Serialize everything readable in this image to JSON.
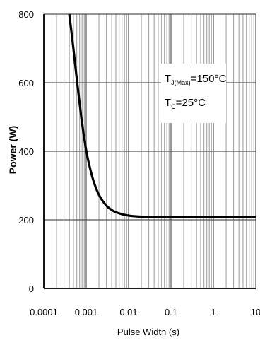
{
  "chart_data": {
    "type": "line",
    "xlabel": "Pulse Width (s)",
    "ylabel": "Power (W)",
    "x_scale": "log",
    "xlim": [
      0.0001,
      10
    ],
    "ylim": [
      0,
      800
    ],
    "x_ticks": [
      0.0001,
      0.001,
      0.01,
      0.1,
      1,
      10
    ],
    "x_tick_labels": [
      "0.0001",
      "0.001",
      "0.01",
      "0.1",
      "1",
      "10"
    ],
    "y_ticks": [
      0,
      200,
      400,
      600,
      800
    ],
    "y_tick_labels": [
      "0",
      "200",
      "400",
      "600",
      "800"
    ],
    "grid": true,
    "series": [
      {
        "color": "#000000",
        "x": [
          0.0004,
          0.0005,
          0.0006,
          0.0007,
          0.0008,
          0.001,
          0.0012,
          0.0015,
          0.002,
          0.003,
          0.004,
          0.005,
          0.007,
          0.01,
          0.015,
          0.02,
          0.03,
          0.05,
          0.1,
          1,
          10
        ],
        "y": [
          800,
          700,
          610,
          540,
          480,
          400,
          355,
          310,
          270,
          240,
          228,
          222,
          216,
          212,
          210,
          209,
          208,
          208,
          208,
          208,
          208
        ]
      }
    ],
    "annotations": {
      "tj_main": "T",
      "tj_sub": "J(Max)",
      "tj_value": "=150°C",
      "tc_main": "T",
      "tc_sub": "C",
      "tc_value": "=25°C"
    }
  }
}
